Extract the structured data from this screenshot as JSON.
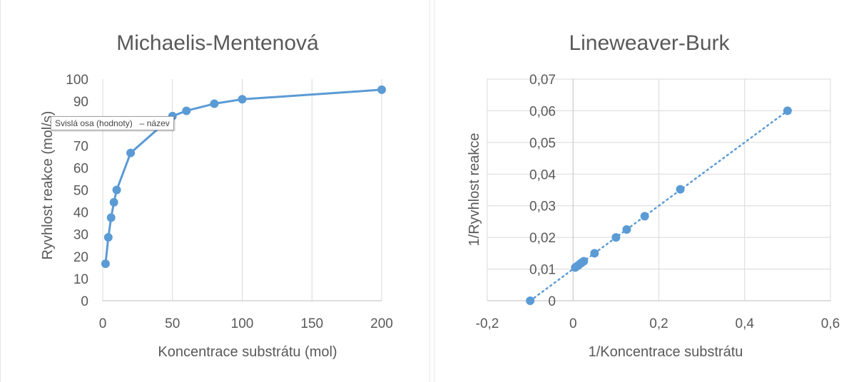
{
  "colors": {
    "series": "#5b9bd5",
    "grid": "#d9d9d9",
    "text": "#595959"
  },
  "tooltip": {
    "text": "Svislá osa (hodnoty)   – název"
  },
  "chart_data": [
    {
      "type": "line",
      "title": "Michaelis-Mentenová",
      "xlabel": "Koncentrace substrátu (mol)",
      "ylabel": "Ryvhlost reakce (mol/s)",
      "xlim": [
        0,
        200
      ],
      "ylim": [
        0,
        100
      ],
      "xticks": [
        0,
        50,
        100,
        150,
        200
      ],
      "yticks": [
        0,
        10,
        20,
        30,
        40,
        50,
        60,
        70,
        80,
        90,
        100
      ],
      "xtick_labels": [
        "0",
        "50",
        "100",
        "150",
        "200"
      ],
      "ytick_labels": [
        "0",
        "10",
        "20",
        "30",
        "40",
        "50",
        "60",
        "70",
        "80",
        "90",
        "100"
      ],
      "grid": "vertical",
      "markers": true,
      "series": [
        {
          "x": [
            2,
            4,
            6,
            8,
            10,
            20,
            50,
            60,
            80,
            100,
            200
          ],
          "y": [
            16.7,
            28.6,
            37.5,
            44.4,
            50,
            66.7,
            83.3,
            85.7,
            88.9,
            90.9,
            95.2
          ]
        }
      ]
    },
    {
      "type": "scatter",
      "title": "Lineweaver-Burk",
      "xlabel": "1/Koncentrace substrátu",
      "ylabel": "1/Ryvhlost reakce",
      "xlim": [
        -0.2,
        0.6
      ],
      "ylim": [
        0,
        0.07
      ],
      "xticks": [
        -0.2,
        0,
        0.2,
        0.4,
        0.6
      ],
      "yticks": [
        0,
        0.01,
        0.02,
        0.03,
        0.04,
        0.05,
        0.06,
        0.07
      ],
      "xtick_labels": [
        "-0,2",
        "0",
        "0,2",
        "0,4",
        "0,6"
      ],
      "ytick_labels": [
        "0",
        "0,01",
        "0,02",
        "0,03",
        "0,04",
        "0,05",
        "0,06",
        "0,07"
      ],
      "grid": "both",
      "trendline": {
        "style": "dotted",
        "from": [
          -0.1,
          0
        ],
        "to": [
          0.5,
          0.06
        ]
      },
      "series": [
        {
          "x": [
            -0.1,
            0.005,
            0.01,
            0.0125,
            0.0167,
            0.02,
            0.025,
            0.05,
            0.1,
            0.125,
            0.167,
            0.25,
            0.5
          ],
          "y": [
            0,
            0.0105,
            0.011,
            0.0112,
            0.0117,
            0.012,
            0.0125,
            0.015,
            0.02,
            0.0225,
            0.0267,
            0.0352,
            0.06
          ]
        }
      ]
    }
  ]
}
